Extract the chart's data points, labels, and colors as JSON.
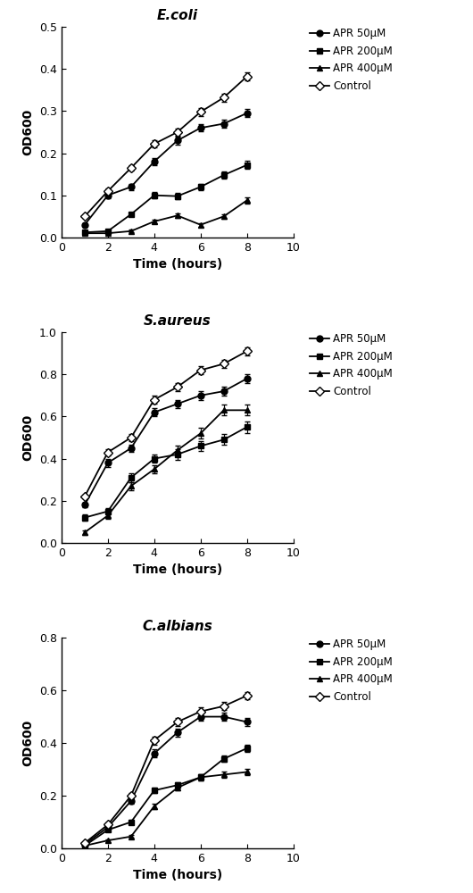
{
  "panels": [
    {
      "title": "E.coli",
      "ylabel": "OD600",
      "xlabel": "Time (hours)",
      "xlim": [
        0,
        10
      ],
      "ylim": [
        0,
        0.5
      ],
      "yticks": [
        0.0,
        0.1,
        0.2,
        0.3,
        0.4,
        0.5
      ],
      "xticks": [
        0,
        2,
        4,
        6,
        8,
        10
      ],
      "series": [
        {
          "label": "APR 50μM",
          "marker": "o",
          "x": [
            1,
            2,
            3,
            4,
            5,
            6,
            7,
            8
          ],
          "y": [
            0.03,
            0.1,
            0.12,
            0.18,
            0.23,
            0.26,
            0.27,
            0.295
          ],
          "yerr": [
            0.004,
            0.006,
            0.007,
            0.009,
            0.009,
            0.009,
            0.009,
            0.009
          ],
          "open": false
        },
        {
          "label": "APR 200μM",
          "marker": "s",
          "x": [
            1,
            2,
            3,
            4,
            5,
            6,
            7,
            8
          ],
          "y": [
            0.012,
            0.015,
            0.055,
            0.1,
            0.098,
            0.12,
            0.148,
            0.172
          ],
          "yerr": [
            0.003,
            0.003,
            0.005,
            0.008,
            0.008,
            0.008,
            0.009,
            0.01
          ],
          "open": false
        },
        {
          "label": "APR 400μM",
          "marker": "^",
          "x": [
            1,
            2,
            3,
            4,
            5,
            6,
            7,
            8
          ],
          "y": [
            0.01,
            0.01,
            0.015,
            0.038,
            0.052,
            0.03,
            0.05,
            0.088
          ],
          "yerr": [
            0.002,
            0.002,
            0.003,
            0.004,
            0.005,
            0.004,
            0.005,
            0.007
          ],
          "open": false
        },
        {
          "label": "Control",
          "marker": "D",
          "x": [
            1,
            2,
            3,
            4,
            5,
            6,
            7,
            8
          ],
          "y": [
            0.05,
            0.11,
            0.165,
            0.222,
            0.25,
            0.298,
            0.332,
            0.382
          ],
          "yerr": [
            0.004,
            0.006,
            0.007,
            0.008,
            0.008,
            0.009,
            0.009,
            0.01
          ],
          "open": true
        }
      ]
    },
    {
      "title": "S.aureus",
      "ylabel": "OD600",
      "xlabel": "Time (hours)",
      "xlim": [
        0,
        10
      ],
      "ylim": [
        0.0,
        1.0
      ],
      "yticks": [
        0.0,
        0.2,
        0.4,
        0.6,
        0.8,
        1.0
      ],
      "xticks": [
        0,
        2,
        4,
        6,
        8,
        10
      ],
      "series": [
        {
          "label": "APR 50μM",
          "marker": "o",
          "x": [
            1,
            2,
            3,
            4,
            5,
            6,
            7,
            8
          ],
          "y": [
            0.18,
            0.38,
            0.45,
            0.62,
            0.66,
            0.7,
            0.72,
            0.78
          ],
          "yerr": [
            0.012,
            0.018,
            0.018,
            0.02,
            0.02,
            0.02,
            0.02,
            0.022
          ],
          "open": false
        },
        {
          "label": "APR 200μM",
          "marker": "s",
          "x": [
            1,
            2,
            3,
            4,
            5,
            6,
            7,
            8
          ],
          "y": [
            0.12,
            0.15,
            0.31,
            0.4,
            0.42,
            0.46,
            0.49,
            0.55
          ],
          "yerr": [
            0.015,
            0.015,
            0.02,
            0.02,
            0.025,
            0.025,
            0.025,
            0.028
          ],
          "open": false
        },
        {
          "label": "APR 400μM",
          "marker": "^",
          "x": [
            1,
            2,
            3,
            4,
            5,
            6,
            7,
            8
          ],
          "y": [
            0.05,
            0.13,
            0.27,
            0.35,
            0.44,
            0.52,
            0.63,
            0.63
          ],
          "yerr": [
            0.01,
            0.015,
            0.02,
            0.02,
            0.02,
            0.025,
            0.025,
            0.025
          ],
          "open": false
        },
        {
          "label": "Control",
          "marker": "D",
          "x": [
            1,
            2,
            3,
            4,
            5,
            6,
            7,
            8
          ],
          "y": [
            0.22,
            0.43,
            0.5,
            0.68,
            0.74,
            0.82,
            0.85,
            0.91
          ],
          "yerr": [
            0.01,
            0.015,
            0.015,
            0.02,
            0.02,
            0.02,
            0.02,
            0.02
          ],
          "open": true
        }
      ]
    },
    {
      "title": "C.albians",
      "ylabel": "OD600",
      "xlabel": "Time (hours)",
      "xlim": [
        0,
        10
      ],
      "ylim": [
        0.0,
        0.8
      ],
      "yticks": [
        0.0,
        0.2,
        0.4,
        0.6,
        0.8
      ],
      "xticks": [
        0,
        2,
        4,
        6,
        8,
        10
      ],
      "series": [
        {
          "label": "APR 50μM",
          "marker": "o",
          "x": [
            1,
            2,
            3,
            4,
            5,
            6,
            7,
            8
          ],
          "y": [
            0.015,
            0.08,
            0.18,
            0.36,
            0.44,
            0.5,
            0.5,
            0.48
          ],
          "yerr": [
            0.003,
            0.008,
            0.01,
            0.015,
            0.015,
            0.015,
            0.015,
            0.015
          ],
          "open": false
        },
        {
          "label": "APR 200μM",
          "marker": "s",
          "x": [
            1,
            2,
            3,
            4,
            5,
            6,
            7,
            8
          ],
          "y": [
            0.01,
            0.07,
            0.1,
            0.22,
            0.24,
            0.27,
            0.34,
            0.38
          ],
          "yerr": [
            0.002,
            0.007,
            0.008,
            0.01,
            0.01,
            0.012,
            0.012,
            0.015
          ],
          "open": false
        },
        {
          "label": "APR 400μM",
          "marker": "^",
          "x": [
            1,
            2,
            3,
            4,
            5,
            6,
            7,
            8
          ],
          "y": [
            0.01,
            0.03,
            0.045,
            0.16,
            0.23,
            0.27,
            0.28,
            0.29
          ],
          "yerr": [
            0.002,
            0.005,
            0.006,
            0.01,
            0.01,
            0.012,
            0.012,
            0.012
          ],
          "open": false
        },
        {
          "label": "Control",
          "marker": "D",
          "x": [
            1,
            2,
            3,
            4,
            5,
            6,
            7,
            8
          ],
          "y": [
            0.02,
            0.09,
            0.2,
            0.41,
            0.48,
            0.52,
            0.54,
            0.58
          ],
          "yerr": [
            0.003,
            0.008,
            0.01,
            0.015,
            0.015,
            0.015,
            0.015,
            0.015
          ],
          "open": true
        }
      ]
    }
  ],
  "line_color": "#000000",
  "marker_size": 5,
  "linewidth": 1.3,
  "legend_fontsize": 8.5,
  "axis_label_fontsize": 10,
  "title_fontsize": 11,
  "tick_fontsize": 9
}
